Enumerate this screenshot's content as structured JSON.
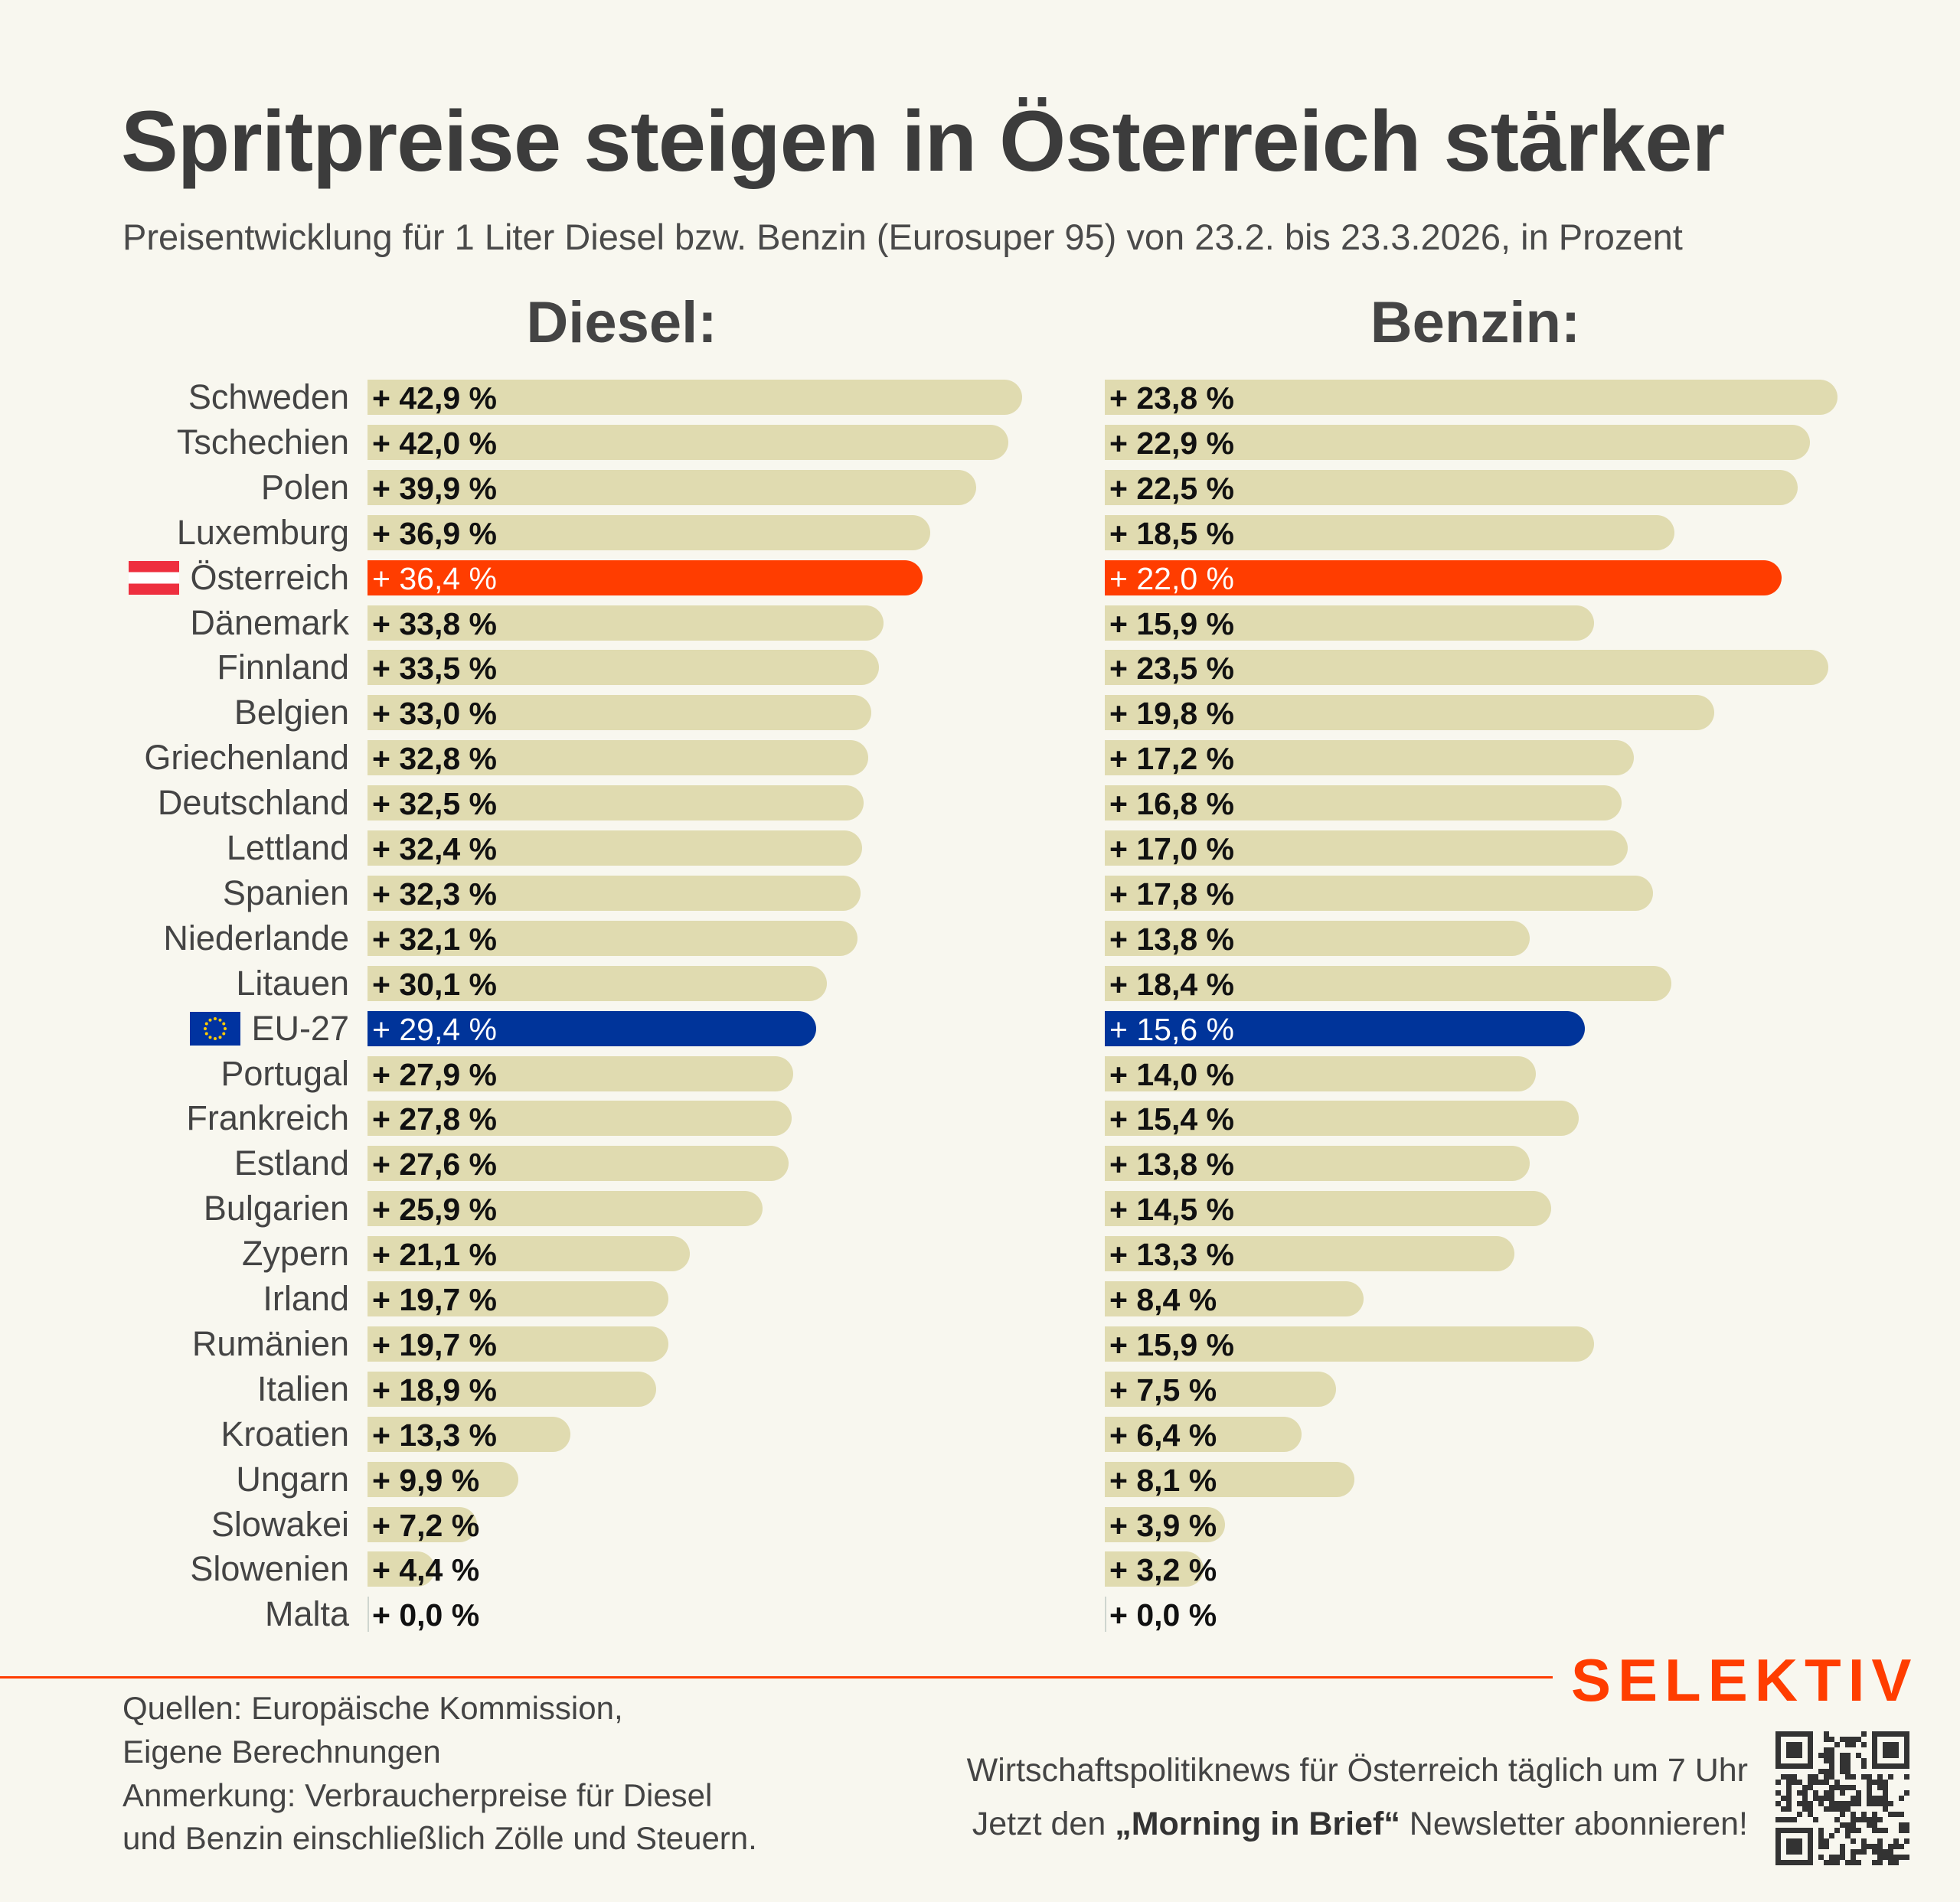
{
  "title": "Spritpreise steigen in Österreich stärker",
  "subtitle": "Preisentwicklung für 1 Liter Diesel bzw. Benzin (Eurosuper 95) von 23.2. bis 23.3.2026, in Prozent",
  "colors": {
    "bar": "#e0dbb0",
    "austria": "#ff3d00",
    "eu": "#00349a",
    "background": "#f8f7ef",
    "brand": "#ff3d00"
  },
  "chart_data": [
    {
      "type": "bar",
      "orientation": "horizontal",
      "title": "Diesel:",
      "categories": [
        "Schweden",
        "Tschechien",
        "Polen",
        "Luxemburg",
        "Österreich",
        "Dänemark",
        "Finnland",
        "Belgien",
        "Griechenland",
        "Deutschland",
        "Lettland",
        "Spanien",
        "Niederlande",
        "Litauen",
        "EU-27",
        "Portugal",
        "Frankreich",
        "Estland",
        "Bulgarien",
        "Zypern",
        "Irland",
        "Rumänien",
        "Italien",
        "Kroatien",
        "Ungarn",
        "Slowakei",
        "Slowenien",
        "Malta"
      ],
      "values": [
        42.9,
        42.0,
        39.9,
        36.9,
        36.4,
        33.8,
        33.5,
        33.0,
        32.8,
        32.5,
        32.4,
        32.3,
        32.1,
        30.1,
        29.4,
        27.9,
        27.8,
        27.6,
        25.9,
        21.1,
        19.7,
        19.7,
        18.9,
        13.3,
        9.9,
        7.2,
        4.4,
        0.0
      ],
      "highlight": {
        "Österreich": "austria",
        "EU-27": "eu"
      },
      "unit": "%"
    },
    {
      "type": "bar",
      "orientation": "horizontal",
      "title": "Benzin:",
      "categories": [
        "Schweden",
        "Tschechien",
        "Polen",
        "Luxemburg",
        "Österreich",
        "Dänemark",
        "Finnland",
        "Belgien",
        "Griechenland",
        "Deutschland",
        "Lettland",
        "Spanien",
        "Niederlande",
        "Litauen",
        "EU-27",
        "Portugal",
        "Frankreich",
        "Estland",
        "Bulgarien",
        "Zypern",
        "Irland",
        "Rumänien",
        "Italien",
        "Kroatien",
        "Ungarn",
        "Slowakei",
        "Slowenien",
        "Malta"
      ],
      "values": [
        23.8,
        22.9,
        22.5,
        18.5,
        22.0,
        15.9,
        23.5,
        19.8,
        17.2,
        16.8,
        17.0,
        17.8,
        13.8,
        18.4,
        15.6,
        14.0,
        15.4,
        13.8,
        14.5,
        13.3,
        8.4,
        15.9,
        7.5,
        6.4,
        8.1,
        3.9,
        3.2,
        0.0
      ],
      "highlight": {
        "Österreich": "austria",
        "EU-27": "eu"
      },
      "unit": "%"
    }
  ],
  "flags": {
    "Österreich": "austria-flag-icon",
    "EU-27": "eu-flag-icon"
  },
  "footer": {
    "sources": [
      "Quellen: Europäische Kommission,",
      "Eigene Berechnungen",
      "Anmerkung: Verbraucherpreise für Diesel",
      "und Benzin einschließlich Zölle und Steuern."
    ],
    "promo_line1": "Wirtschaftspolitiknews für Österreich täglich um 7 Uhr",
    "promo_pre": "Jetzt den ",
    "promo_bold": "„Morning in Brief“",
    "promo_post": " Newsletter abonnieren!",
    "brand": "SELEKTIV"
  }
}
